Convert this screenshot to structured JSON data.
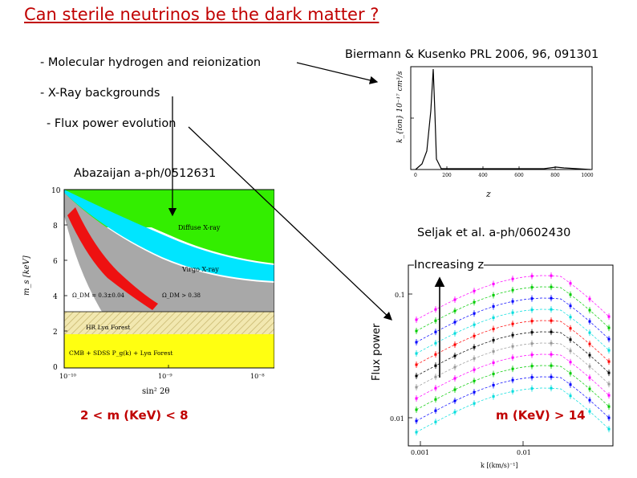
{
  "slide": {
    "title": "Can sterile neutrinos be the dark matter ?",
    "bullets": [
      "- Molecular hydrogen and reionization",
      "- X-Ray backgrounds",
      "- Flux power evolution"
    ],
    "ref_biermann": "Biermann & Kusenko PRL 2006, 96, 091301",
    "ref_abazajian": "Abazaijan a-ph/0512631",
    "ref_seljak": "Seljak et al. a-ph/0602430",
    "mass_range_left": "2 < m (KeV) < 8",
    "mass_range_right": "m (KeV) > 14"
  },
  "abazajian_plot": {
    "ylabel": "m_s [keV]",
    "xlabel": "sin² 2θ",
    "yticks": [
      "0",
      "2",
      "4",
      "6",
      "8",
      "10"
    ],
    "xticks": [
      "10⁻¹⁰",
      "10⁻⁹",
      "10⁻⁸"
    ],
    "region_labels": {
      "diffuse": "Diffuse X-ray",
      "virgo": "Virgo X-ray",
      "omega1": "Ω_DM = 0.3±0.04",
      "omega2": "Ω_DM > 0.38",
      "hr_lya": "HR Lyα Forest",
      "cmb": "CMB + SDSS P_g(k) + Lyα Forest"
    },
    "colors": {
      "green": "#33ee00",
      "cyan": "#00e5ff",
      "grey": "#a8a8a8",
      "red": "#ee1111",
      "yellow": "#ffff11",
      "hatch": "#f2e8b0"
    }
  },
  "biermann_plot": {
    "ylabel": "k_{ion} 10⁻¹⁷ cm³/s",
    "xlabel": "z",
    "xticks": [
      "0",
      "200",
      "400",
      "600",
      "800",
      "1000"
    ]
  },
  "seljak_plot": {
    "ylabel": "Flux power",
    "annotation": "Increasing z",
    "xlabel": "k [(km/s)⁻¹]",
    "yticks": [
      "0.1",
      "0.01"
    ],
    "xticks": [
      "0.001",
      "0.01"
    ],
    "series_colors": [
      "#ff00ff",
      "#00cc00",
      "#0000ff",
      "#00dddd",
      "#ff0000",
      "#000000",
      "#999999"
    ]
  }
}
